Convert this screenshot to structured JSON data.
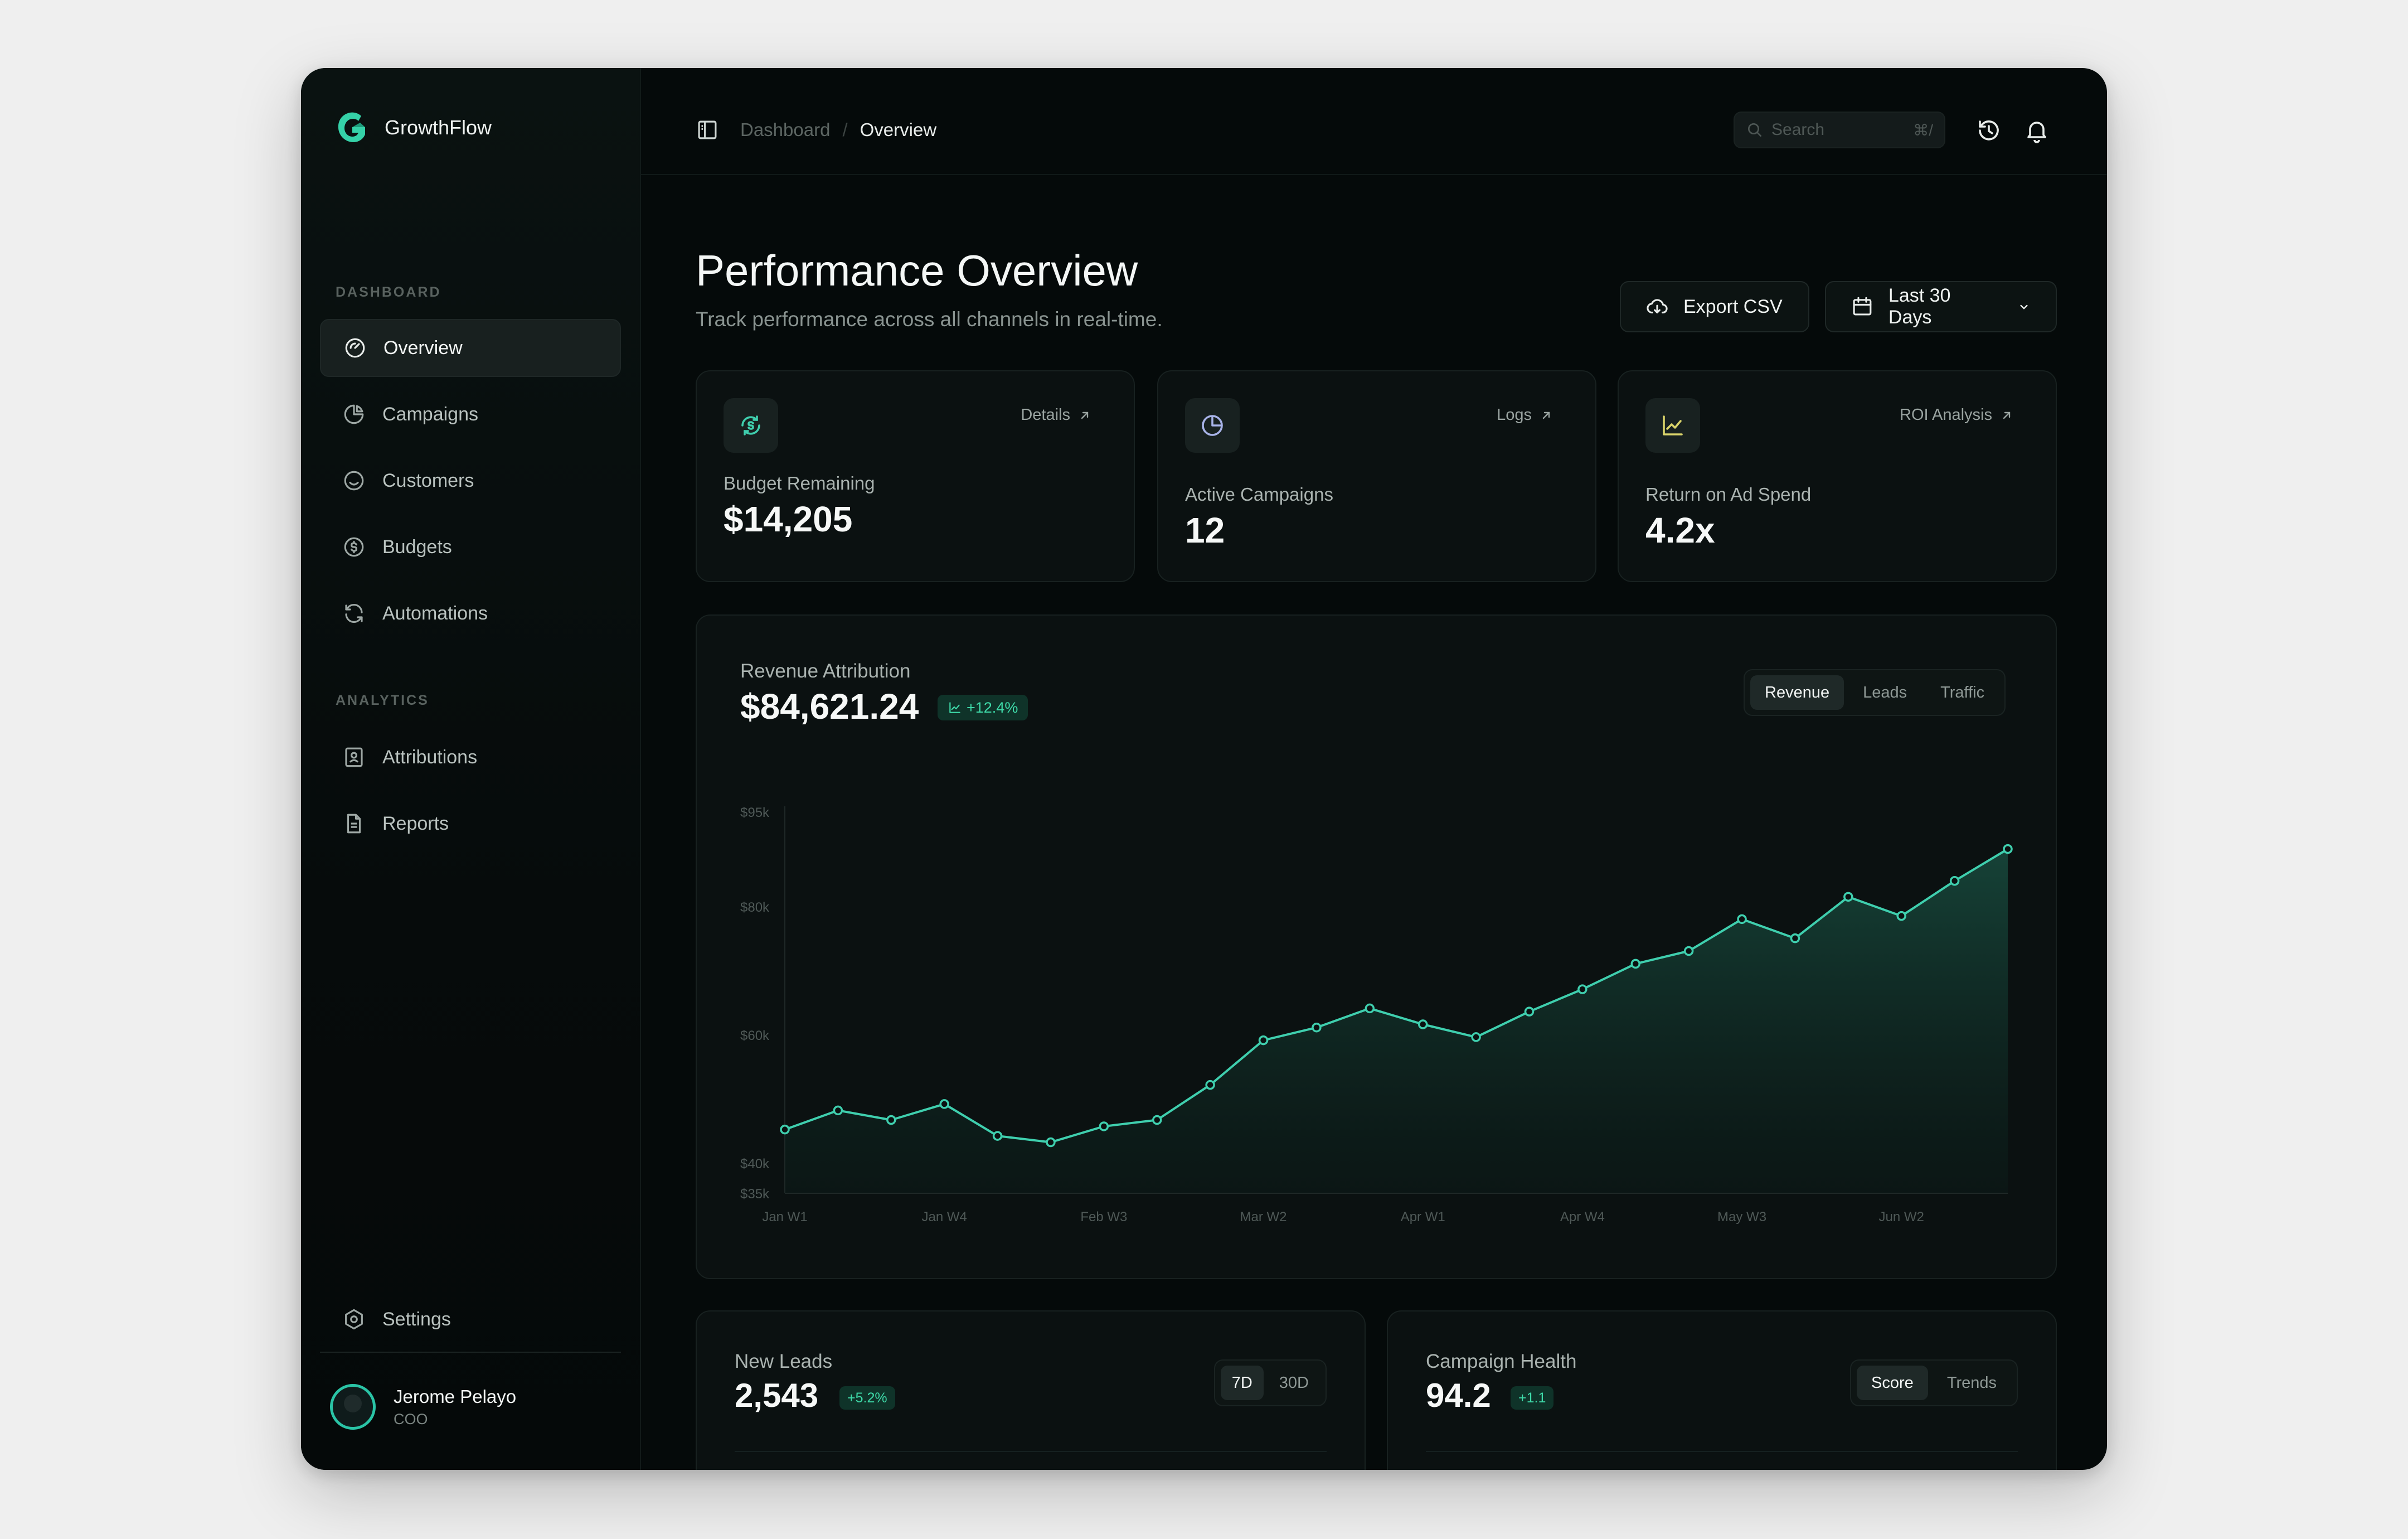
{
  "app": {
    "name": "GrowthFlow"
  },
  "sidebar": {
    "sections": [
      {
        "label": "DASHBOARD",
        "items": [
          {
            "label": "Overview",
            "icon": "gauge-icon",
            "active": true
          },
          {
            "label": "Campaigns",
            "icon": "pie-chart-icon"
          },
          {
            "label": "Customers",
            "icon": "smile-icon"
          },
          {
            "label": "Budgets",
            "icon": "dollar-coin-icon"
          },
          {
            "label": "Automations",
            "icon": "refresh-icon"
          }
        ]
      },
      {
        "label": "ANALYTICS",
        "items": [
          {
            "label": "Attributions",
            "icon": "contact-card-icon"
          },
          {
            "label": "Reports",
            "icon": "document-icon"
          }
        ]
      }
    ],
    "settings_label": "Settings",
    "user": {
      "name": "Jerome Pelayo",
      "role": "COO"
    }
  },
  "topbar": {
    "breadcrumb": {
      "parent": "Dashboard",
      "separator": "/",
      "current": "Overview"
    },
    "search": {
      "placeholder": "Search",
      "shortcut": "⌘/"
    }
  },
  "page": {
    "title": "Performance Overview",
    "subtitle": "Track performance across all channels in real-time.",
    "export_label": "Export CSV",
    "date_range_label": "Last 30 Days"
  },
  "stats": [
    {
      "label": "Budget Remaining",
      "value": "$14,205",
      "link": "Details",
      "icon": "dollar-refresh-icon"
    },
    {
      "label": "Active Campaigns",
      "value": "12",
      "link": "Logs",
      "icon": "pie-chart-icon"
    },
    {
      "label": "Return on Ad Spend",
      "value": "4.2x",
      "link": "ROI Analysis",
      "icon": "line-chart-icon"
    }
  ],
  "revenue": {
    "label": "Revenue Attribution",
    "value": "$84,621.24",
    "change": "+12.4%",
    "tabs": [
      "Revenue",
      "Leads",
      "Traffic"
    ],
    "active_tab": "Revenue"
  },
  "chart_data": {
    "type": "area",
    "y_ticks": [
      "$95k",
      "$80k",
      "$60k",
      "$40k",
      "$35k"
    ],
    "x_tick_labels": [
      "Jan W1",
      "Jan W4",
      "Feb W3",
      "Mar W2",
      "Apr W1",
      "Apr W4",
      "May W3",
      "Jun W2"
    ],
    "ylim": [
      35000,
      95000
    ],
    "grid": false,
    "accent_color": "#3fcfae",
    "series": [
      {
        "values": [
          45000,
          48000,
          46500,
          49000,
          44000,
          43000,
          45500,
          46500,
          52000,
          59000,
          61000,
          64000,
          61500,
          59500,
          63500,
          67000,
          71000,
          73000,
          78000,
          75000,
          81500,
          78500,
          84000,
          89000
        ]
      }
    ]
  },
  "leads": {
    "label": "New Leads",
    "value": "2,543",
    "change": "+5.2%",
    "tabs": [
      "7D",
      "30D"
    ],
    "active_tab": "7D"
  },
  "health": {
    "label": "Campaign Health",
    "value": "94.2",
    "change": "+1.1",
    "tabs": [
      "Score",
      "Trends"
    ],
    "active_tab": "Score"
  }
}
